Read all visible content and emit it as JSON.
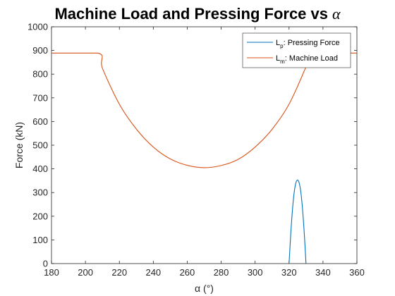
{
  "chart_data": {
    "type": "line",
    "title": "Machine Load and Pressing Force vs",
    "title_symbol": "α",
    "xlabel": "α (°)",
    "ylabel": "Force (kN)",
    "xlim": [
      180,
      360
    ],
    "ylim": [
      0,
      1000
    ],
    "xticks": [
      180,
      200,
      220,
      240,
      260,
      280,
      300,
      320,
      340,
      360
    ],
    "yticks": [
      0,
      100,
      200,
      300,
      400,
      500,
      600,
      700,
      800,
      900,
      1000
    ],
    "grid": false,
    "legend_position": "top-right",
    "series": [
      {
        "name": "L_p: Pressing Force",
        "legend_main": "L",
        "legend_sub": "p",
        "legend_rest": ": Pressing Force",
        "color": "#0072BD",
        "x": [
          320,
          321,
          322,
          323,
          324,
          325,
          326,
          327,
          328,
          329,
          330
        ],
        "y": [
          0,
          124,
          226,
          299,
          340,
          353,
          340,
          299,
          226,
          124,
          0
        ]
      },
      {
        "name": "L_m: Machine Load",
        "legend_main": "L",
        "legend_sub": "m",
        "legend_rest": ": Machine Load",
        "color": "#D95319",
        "x": [
          180,
          207.5,
          210,
          220,
          230,
          240,
          250,
          260,
          270,
          280,
          290,
          300,
          310,
          320,
          330,
          333,
          360
        ],
        "y": [
          889,
          889,
          825,
          673,
          568,
          492,
          442,
          415,
          405,
          414,
          440,
          492,
          567,
          673,
          831,
          889,
          889
        ]
      }
    ]
  }
}
